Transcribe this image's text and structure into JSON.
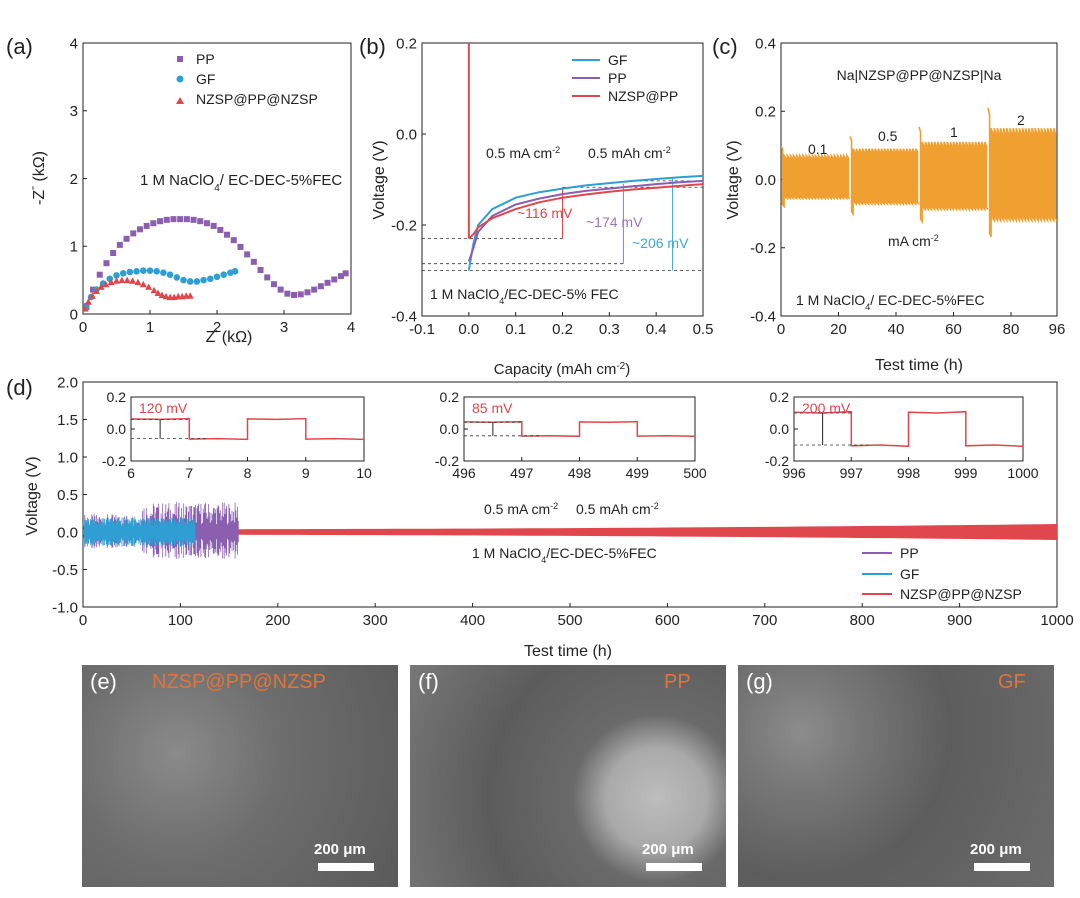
{
  "colors": {
    "pp": "#8b5fb0",
    "gf": "#2f9fd3",
    "nzsp": "#e0474c",
    "orange": "#f0a030",
    "ann_blue": "#43a6db",
    "ann_purple": "#a470c0",
    "ann_red": "#e0474c",
    "sem_label": "#e2733a"
  },
  "chart_data": [
    {
      "id": "a",
      "type": "scatter",
      "panel_label": "(a)",
      "xlabel": "Z' (kΩ)",
      "ylabel": "-Z'' (kΩ)",
      "xlim": [
        0,
        4
      ],
      "ylim": [
        0,
        4
      ],
      "xticks": [
        "0",
        "1",
        "2",
        "3",
        "4"
      ],
      "yticks": [
        "0",
        "1",
        "2",
        "3",
        "4"
      ],
      "annotation": "1 M NaClO4/ EC-DEC-5%FEC",
      "series": [
        {
          "name": "PP",
          "marker": "square",
          "x": [
            0.05,
            0.15,
            0.25,
            0.35,
            0.45,
            0.55,
            0.65,
            0.75,
            0.85,
            0.95,
            1.05,
            1.15,
            1.25,
            1.35,
            1.45,
            1.55,
            1.65,
            1.75,
            1.85,
            1.95,
            2.05,
            2.15,
            2.25,
            2.35,
            2.45,
            2.55,
            2.65,
            2.75,
            2.85,
            2.95,
            3.05,
            3.15,
            3.25,
            3.35,
            3.45,
            3.55,
            3.65,
            3.75,
            3.85,
            3.92
          ],
          "y": [
            0.1,
            0.36,
            0.58,
            0.75,
            0.9,
            1.02,
            1.11,
            1.19,
            1.25,
            1.3,
            1.34,
            1.37,
            1.39,
            1.4,
            1.4,
            1.4,
            1.39,
            1.37,
            1.34,
            1.3,
            1.24,
            1.17,
            1.09,
            0.99,
            0.88,
            0.77,
            0.65,
            0.54,
            0.44,
            0.36,
            0.3,
            0.28,
            0.29,
            0.32,
            0.36,
            0.41,
            0.46,
            0.51,
            0.56,
            0.6
          ]
        },
        {
          "name": "GF",
          "marker": "circle",
          "x": [
            0.05,
            0.12,
            0.2,
            0.3,
            0.4,
            0.5,
            0.6,
            0.7,
            0.8,
            0.9,
            1.0,
            1.1,
            1.2,
            1.3,
            1.4,
            1.5,
            1.6,
            1.7,
            1.8,
            1.9,
            2.0,
            2.1,
            2.2,
            2.27
          ],
          "y": [
            0.12,
            0.25,
            0.36,
            0.45,
            0.52,
            0.57,
            0.6,
            0.62,
            0.63,
            0.64,
            0.64,
            0.63,
            0.61,
            0.58,
            0.54,
            0.5,
            0.48,
            0.48,
            0.5,
            0.52,
            0.55,
            0.58,
            0.61,
            0.63
          ]
        },
        {
          "name": "NZSP@PP@NZSP",
          "marker": "triangle",
          "x": [
            0.03,
            0.08,
            0.14,
            0.2,
            0.27,
            0.34,
            0.42,
            0.5,
            0.58,
            0.66,
            0.74,
            0.82,
            0.9,
            0.98,
            1.06,
            1.12,
            1.18,
            1.24,
            1.3,
            1.36,
            1.42,
            1.48,
            1.54,
            1.6
          ],
          "y": [
            0.08,
            0.18,
            0.27,
            0.34,
            0.4,
            0.44,
            0.47,
            0.49,
            0.5,
            0.5,
            0.49,
            0.47,
            0.44,
            0.4,
            0.35,
            0.31,
            0.28,
            0.26,
            0.25,
            0.25,
            0.26,
            0.26,
            0.27,
            0.27
          ]
        }
      ]
    },
    {
      "id": "b",
      "type": "line",
      "panel_label": "(b)",
      "xlabel": "Capacity (mAh cm⁻²)",
      "ylabel": "Voltage (V)",
      "xlim": [
        -0.1,
        0.5
      ],
      "ylim": [
        -0.4,
        0.2
      ],
      "xticks": [
        "-0.1",
        "0.0",
        "0.1",
        "0.2",
        "0.3",
        "0.4",
        "0.5"
      ],
      "yticks": [
        "-0.4",
        "-0.2",
        "0.0",
        "0.2"
      ],
      "annotations": [
        "0.5 mA cm⁻²",
        "0.5 mAh cm⁻²",
        "1 M NaClO4/EC-DEC-5% FEC",
        "~116 mV",
        "~174 mV",
        "~206 mV"
      ],
      "overpotentials_mV": {
        "NZSP@PP": 116,
        "PP": 174,
        "GF": 206
      },
      "series": [
        {
          "name": "GF",
          "x": [
            0.0,
            0.01,
            0.02,
            0.05,
            0.1,
            0.15,
            0.2,
            0.25,
            0.3,
            0.35,
            0.4,
            0.45,
            0.5
          ],
          "y": [
            -0.3,
            -0.24,
            -0.2,
            -0.165,
            -0.14,
            -0.128,
            -0.12,
            -0.113,
            -0.108,
            -0.103,
            -0.099,
            -0.095,
            -0.092
          ]
        },
        {
          "name": "PP",
          "x": [
            0.0,
            0.01,
            0.02,
            0.05,
            0.1,
            0.15,
            0.2,
            0.25,
            0.3,
            0.35,
            0.4,
            0.45,
            0.5
          ],
          "y": [
            -0.28,
            -0.25,
            -0.215,
            -0.18,
            -0.155,
            -0.142,
            -0.132,
            -0.125,
            -0.12,
            -0.115,
            -0.11,
            -0.106,
            -0.103
          ]
        },
        {
          "name": "NZSP@PP",
          "x": [
            0.0,
            0.01,
            0.02,
            0.05,
            0.1,
            0.15,
            0.2,
            0.25,
            0.3,
            0.35,
            0.4,
            0.45,
            0.5
          ],
          "y": [
            -0.23,
            -0.22,
            -0.205,
            -0.185,
            -0.165,
            -0.15,
            -0.14,
            -0.133,
            -0.127,
            -0.122,
            -0.118,
            -0.114,
            -0.11
          ]
        }
      ]
    },
    {
      "id": "c",
      "type": "line",
      "panel_label": "(c)",
      "title": "Na|NZSP@PP@NZSP|Na",
      "xlabel": "Test time (h)",
      "ylabel": "Voltage (V)",
      "xlim": [
        0,
        96
      ],
      "ylim": [
        -0.4,
        0.4
      ],
      "xticks": [
        "0",
        "20",
        "40",
        "60",
        "80",
        "96"
      ],
      "yticks": [
        "-0.4",
        "-0.2",
        "0.0",
        "0.2",
        "0.4"
      ],
      "annotations": [
        "mA cm⁻²",
        "1 M NaClO4/ EC-DEC-5%FEC"
      ],
      "rate_labels": [
        "0.1",
        "0.5",
        "1",
        "2"
      ],
      "segments": [
        {
          "rate": "0.1",
          "t_start": 0,
          "t_end": 24,
          "amplitude": 0.07
        },
        {
          "rate": "0.5",
          "t_start": 24,
          "t_end": 48,
          "amplitude": 0.09
        },
        {
          "rate": "1",
          "t_start": 48,
          "t_end": 72,
          "amplitude": 0.11
        },
        {
          "rate": "2",
          "t_start": 72,
          "t_end": 96,
          "amplitude": 0.15
        }
      ]
    },
    {
      "id": "d",
      "type": "line",
      "panel_label": "(d)",
      "xlabel": "Test time (h)",
      "ylabel": "Voltage (V)",
      "xlim": [
        0,
        1000
      ],
      "ylim": [
        -1.0,
        2.0
      ],
      "xticks": [
        "0",
        "100",
        "200",
        "300",
        "400",
        "500",
        "600",
        "700",
        "800",
        "900",
        "1000"
      ],
      "yticks": [
        "-1.0",
        "-0.5",
        "0.0",
        "0.5",
        "1.0",
        "1.5",
        "2.0"
      ],
      "annotations": [
        "0.5 mA cm⁻²",
        "0.5 mAh cm⁻²",
        "1 M NaClO4/EC-DEC-5%FEC"
      ],
      "series": [
        {
          "name": "PP",
          "t_end": 160,
          "amplitude": 0.4
        },
        {
          "name": "GF",
          "t_end": 115,
          "amplitude": 0.2
        },
        {
          "name": "NZSP@PP@NZSP",
          "t_end": 1000,
          "amplitude_start": 0.03,
          "amplitude_end": 0.1
        }
      ],
      "insets": [
        {
          "xlim": [
            6,
            10
          ],
          "ylim": [
            -0.2,
            0.2
          ],
          "xticks": [
            "6",
            "7",
            "8",
            "9",
            "10"
          ],
          "yticks": [
            "-0.2",
            "0.0",
            "0.2"
          ],
          "label": "120 mV",
          "value_mV": 120
        },
        {
          "xlim": [
            496,
            500
          ],
          "ylim": [
            -0.2,
            0.2
          ],
          "xticks": [
            "496",
            "497",
            "498",
            "499",
            "500"
          ],
          "yticks": [
            "-0.2",
            "0.0",
            "0.2"
          ],
          "label": "85 mV",
          "value_mV": 85
        },
        {
          "xlim": [
            996,
            1000
          ],
          "ylim": [
            -0.2,
            0.2
          ],
          "xticks": [
            "996",
            "997",
            "998",
            "999",
            "1000"
          ],
          "yticks": [
            "-0.2",
            "0.0",
            "0.2"
          ],
          "label": "200 mV",
          "value_mV": 200
        }
      ]
    }
  ],
  "sem": [
    {
      "label": "(e)",
      "title": "NZSP@PP@NZSP",
      "scale": "200 μm"
    },
    {
      "label": "(f)",
      "title": "PP",
      "scale": "200 μm"
    },
    {
      "label": "(g)",
      "title": "GF",
      "scale": "200 μm"
    }
  ]
}
